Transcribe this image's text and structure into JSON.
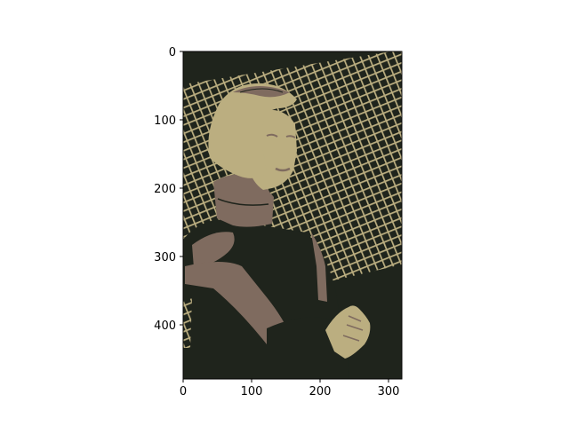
{
  "figure": {
    "colors": {
      "dark": "#1f241c",
      "light": "#bbae80",
      "mid": "#7f6b5f",
      "axis": "#000000",
      "background": "#ffffff"
    },
    "image": {
      "subject": "posterized portrait of a person with a bob haircut, turtleneck and dark vest, arms crossed, in front of a diagonal grid pattern",
      "palette": [
        "#1f241c",
        "#7f6b5f",
        "#bbae80"
      ]
    },
    "x_axis": {
      "ticks": [
        0,
        100,
        200,
        300
      ],
      "tick_labels": [
        "0",
        "100",
        "200",
        "300"
      ],
      "range": [
        0,
        320
      ]
    },
    "y_axis": {
      "ticks": [
        0,
        100,
        200,
        300,
        400
      ],
      "tick_labels": [
        "0",
        "100",
        "200",
        "300",
        "400"
      ],
      "range": [
        480,
        0
      ]
    }
  }
}
